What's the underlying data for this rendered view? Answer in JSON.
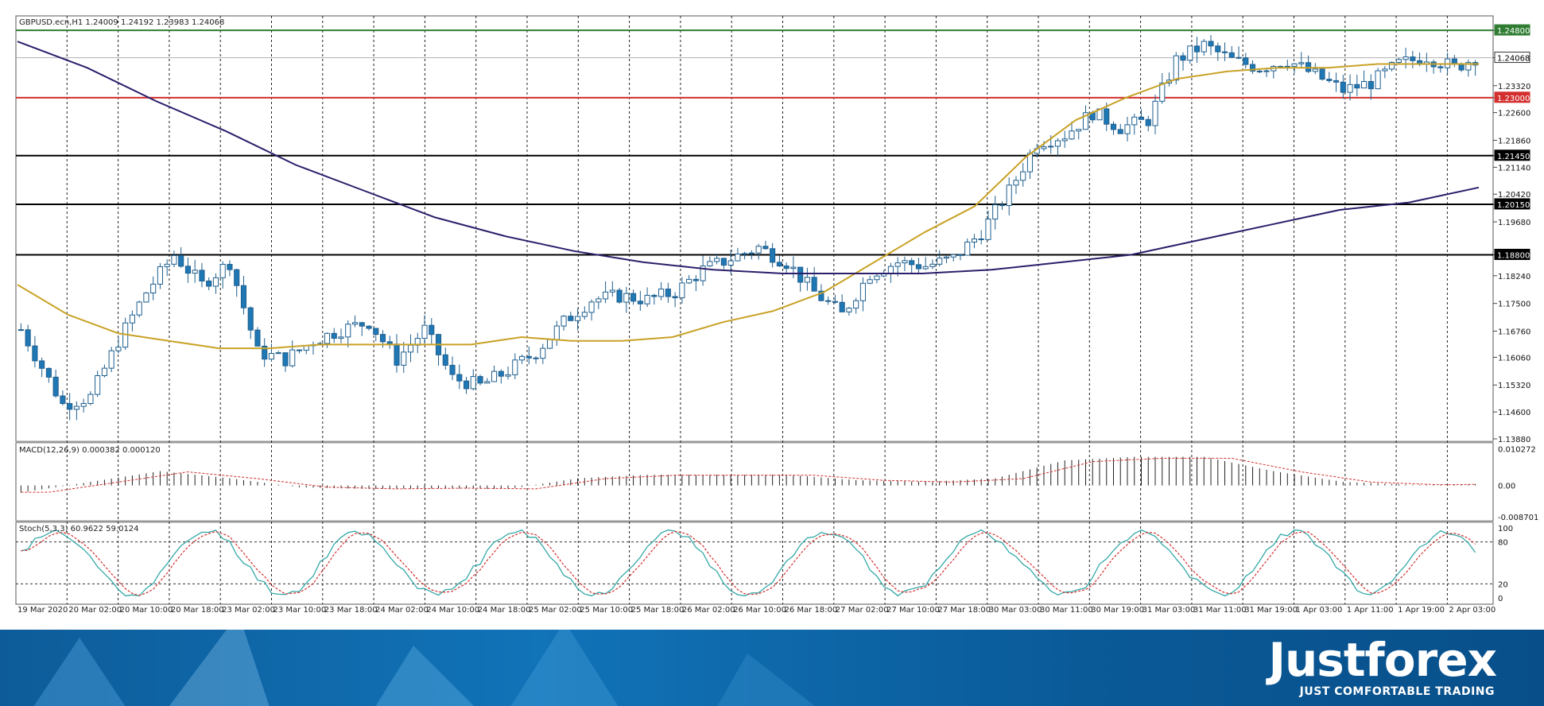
{
  "header": {
    "symbol": "GBPUSD.ecn,H1",
    "ohlc": "1.24009 1.24192 1.23983 1.24068"
  },
  "chart_data": [
    {
      "type": "candlestick",
      "name": "price",
      "ylim": [
        1.1388,
        1.251
      ],
      "price_ticks": [
        "1.24800",
        "1.24068",
        "1.23320",
        "1.23000",
        "1.22600",
        "1.21860",
        "1.21450",
        "1.21140",
        "1.20420",
        "1.20150",
        "1.19680",
        "1.18800",
        "1.18240",
        "1.17500",
        "1.16760",
        "1.16060",
        "1.15320",
        "1.14600",
        "1.13880"
      ],
      "horizontal_lines": [
        {
          "value": 1.248,
          "label": "1.24800",
          "color": "#2e7d32"
        },
        {
          "value": 1.24068,
          "label": "1.24068",
          "color": "#b0b0b0"
        },
        {
          "value": 1.23,
          "label": "1.23000",
          "color": "#d32f2f"
        },
        {
          "value": 1.2145,
          "label": "1.21450",
          "color": "#000000"
        },
        {
          "value": 1.2015,
          "label": "1.20150",
          "color": "#000000"
        },
        {
          "value": 1.188,
          "label": "1.18800",
          "color": "#000000"
        }
      ],
      "moving_averages": [
        {
          "color": "#c9a227",
          "values": [
            1.18,
            1.172,
            1.167,
            1.165,
            1.163,
            1.163,
            1.164,
            1.164,
            1.164,
            1.164,
            1.166,
            1.165,
            1.165,
            1.166,
            1.17,
            1.173,
            1.178,
            1.186,
            1.194,
            1.201,
            1.214,
            1.224,
            1.23,
            1.235,
            1.237,
            1.238,
            1.238,
            1.239,
            1.239,
            1.239
          ]
        },
        {
          "color": "#2b1f6b",
          "values": [
            1.245,
            1.238,
            1.229,
            1.221,
            1.212,
            1.205,
            1.198,
            1.193,
            1.189,
            1.186,
            1.184,
            1.183,
            1.183,
            1.183,
            1.184,
            1.186,
            1.188,
            1.192,
            1.196,
            1.2,
            1.202,
            1.206
          ]
        }
      ],
      "candle_color_up": "#ffffff",
      "candle_color_down": "#1f77b4",
      "candle_count": 210
    },
    {
      "type": "histogram",
      "name": "macd",
      "label": "MACD(12,26,9) 0.000382 0.000120",
      "ticks": [
        "0.010272",
        "0.00",
        "-0.008701"
      ],
      "ylim": [
        -0.0092,
        0.0108
      ]
    },
    {
      "type": "line",
      "name": "stochastic",
      "label": "Stoch(5,3,3) 60.9622 59.0124",
      "ticks": [
        "100",
        "80",
        "20",
        "0"
      ],
      "ylim": [
        0,
        100
      ],
      "main_color": "#35a8a8",
      "signal_color": "#d32f2f"
    }
  ],
  "time_axis": [
    "19 Mar 2020",
    "20 Mar 02:00",
    "20 Mar 10:00",
    "20 Mar 18:00",
    "23 Mar 02:00",
    "23 Mar 10:00",
    "23 Mar 18:00",
    "24 Mar 02:00",
    "24 Mar 10:00",
    "24 Mar 18:00",
    "25 Mar 02:00",
    "25 Mar 10:00",
    "25 Mar 18:00",
    "26 Mar 02:00",
    "26 Mar 10:00",
    "26 Mar 18:00",
    "27 Mar 02:00",
    "27 Mar 10:00",
    "27 Mar 18:00",
    "30 Mar 03:00",
    "30 Mar 11:00",
    "30 Mar 19:00",
    "31 Mar 03:00",
    "31 Mar 11:00",
    "31 Mar 19:00",
    "1 Apr 03:00",
    "1 Apr 11:00",
    "1 Apr 19:00",
    "2 Apr 03:00"
  ],
  "brand": {
    "name": "Justforex",
    "tagline": "JUST COMFORTABLE TRADING"
  }
}
